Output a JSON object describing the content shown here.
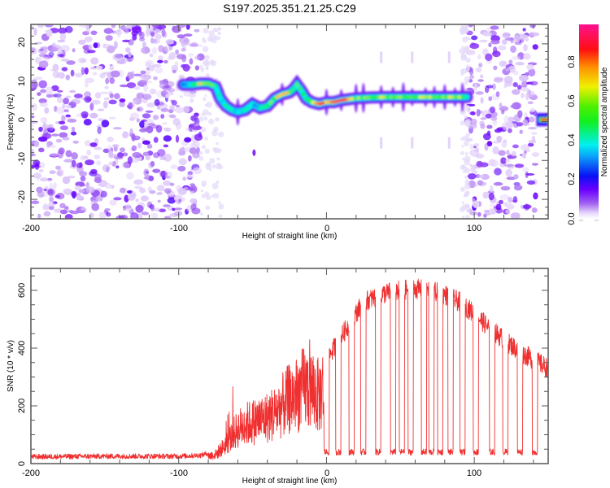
{
  "title": "S197.2025.351.21.25.C29",
  "chart_data": [
    {
      "type": "heatmap",
      "title": "S197.2025.351.21.25.C29",
      "xlabel": "Height of straight line (km)",
      "ylabel": "Frequency (Hz)",
      "xlim": [
        -200,
        150
      ],
      "ylim": [
        -25,
        25
      ],
      "xticks": [
        -200,
        -100,
        0,
        100
      ],
      "xtick_labels": [
        "-200",
        "-100",
        "0",
        "100"
      ],
      "yticks": [
        -20,
        -10,
        0,
        10,
        20
      ],
      "ytick_labels": [
        "-20",
        "-10",
        "0",
        "10",
        "20"
      ],
      "colorbar": {
        "label": "Normalized spectral amplitude",
        "range": [
          0,
          1
        ],
        "ticks": [
          0.0,
          0.2,
          0.4,
          0.6,
          0.8
        ],
        "tick_labels": [
          "0.0",
          "0.2",
          "0.4",
          "0.6",
          "0.8"
        ],
        "colormap": "rainbow (white-violet-blue-cyan-green-yellow-red-magenta)"
      },
      "noise_regions_km": [
        [
          -200,
          -85
        ],
        [
          96,
          142
        ]
      ],
      "ridge": {
        "description": "dominant frequency track of the signal",
        "x_km": [
          -97,
          -90,
          -85,
          -80,
          -75,
          -72,
          -68,
          -64,
          -60,
          -55,
          -50,
          -45,
          -40,
          -35,
          -30,
          -25,
          -22,
          -20,
          -17,
          -14,
          -10,
          -5,
          0,
          5,
          10,
          20,
          30,
          40,
          50,
          60,
          70,
          80,
          90,
          95
        ],
        "freq_hz": [
          9.5,
          9.5,
          9.8,
          9.8,
          9,
          6,
          4,
          3,
          2.5,
          3,
          4.5,
          3.5,
          4,
          6,
          7,
          7.5,
          8.5,
          9.5,
          8,
          6,
          5,
          4.5,
          5,
          5,
          5.5,
          6,
          6.2,
          6.3,
          6.3,
          6.3,
          6.3,
          6.3,
          6.3,
          6.3
        ],
        "amplitude": [
          0.35,
          0.45,
          0.75,
          0.7,
          0.5,
          0.4,
          0.4,
          0.45,
          0.35,
          0.4,
          0.35,
          0.45,
          0.55,
          0.65,
          0.7,
          0.7,
          0.55,
          0.55,
          0.5,
          0.5,
          0.75,
          0.8,
          0.8,
          0.85,
          0.9,
          0.6,
          0.6,
          0.65,
          0.6,
          0.6,
          0.65,
          0.7,
          0.6,
          0.5
        ]
      },
      "end_segment": {
        "x_km": [
          142,
          150
        ],
        "freq_hz": 0.5,
        "amplitude": 0.9
      }
    },
    {
      "type": "line",
      "xlabel": "Height of straight line (km)",
      "ylabel": "SNR (10 * v/v)",
      "xlim": [
        -200,
        150
      ],
      "ylim": [
        0,
        676
      ],
      "xticks": [
        -200,
        -100,
        0,
        100
      ],
      "xtick_labels": [
        "-200",
        "-100",
        "0",
        "100"
      ],
      "yticks": [
        0,
        200,
        400,
        600
      ],
      "ytick_labels": [
        "0",
        "200",
        "400",
        "600"
      ],
      "series": [
        {
          "name": "SNR",
          "color": "#f03030",
          "envelope_x_km": [
            -200,
            -150,
            -100,
            -85,
            -75,
            -70,
            -65,
            -60,
            -55,
            -50,
            -45,
            -40,
            -35,
            -30,
            -25,
            -20,
            -15,
            -10,
            -5,
            0,
            5,
            10,
            15,
            20,
            25,
            30,
            40,
            50,
            60,
            70,
            80,
            90,
            100,
            110,
            120,
            130,
            140,
            150
          ],
          "envelope_snr": [
            20,
            22,
            22,
            25,
            40,
            70,
            110,
            150,
            170,
            180,
            190,
            200,
            220,
            250,
            280,
            300,
            330,
            320,
            290,
            360,
            400,
            440,
            480,
            520,
            560,
            570,
            590,
            600,
            605,
            600,
            585,
            560,
            520,
            470,
            430,
            390,
            360,
            330
          ],
          "dropout_level": 40,
          "dropout_centers_km": [
            0,
            8,
            17,
            25,
            35,
            45,
            51,
            57,
            66,
            71,
            77,
            84,
            92,
            101,
            112,
            121,
            131,
            141
          ]
        }
      ]
    }
  ]
}
